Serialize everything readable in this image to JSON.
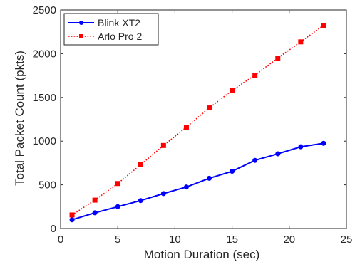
{
  "chart_data": {
    "type": "line",
    "title": "",
    "xlabel": "Motion Duration (sec)",
    "ylabel": "Total Packet Count (pkts)",
    "xlim": [
      0,
      25
    ],
    "ylim": [
      0,
      2500
    ],
    "xticks": [
      0,
      5,
      10,
      15,
      20,
      25
    ],
    "yticks": [
      0,
      500,
      1000,
      1500,
      2000,
      2500
    ],
    "xtick_labels": [
      "0",
      "5",
      "10",
      "15",
      "20",
      "25"
    ],
    "ytick_labels": [
      "0",
      "500",
      "1000",
      "1500",
      "2000",
      "2500"
    ],
    "grid": false,
    "legend_position": "top-left",
    "x": [
      1,
      3,
      5,
      7,
      9,
      11,
      13,
      15,
      17,
      19,
      21,
      23
    ],
    "series": [
      {
        "name": "Blink XT2",
        "color": "#0000ff",
        "line_style": "solid",
        "marker": "circle",
        "values": [
          100,
          180,
          250,
          320,
          400,
          475,
          575,
          655,
          780,
          855,
          935,
          975
        ]
      },
      {
        "name": "Arlo Pro 2",
        "color": "#ff0000",
        "line_style": "dotted",
        "marker": "square",
        "values": [
          155,
          325,
          515,
          730,
          950,
          1160,
          1380,
          1580,
          1755,
          1950,
          2135,
          2325
        ]
      }
    ]
  }
}
